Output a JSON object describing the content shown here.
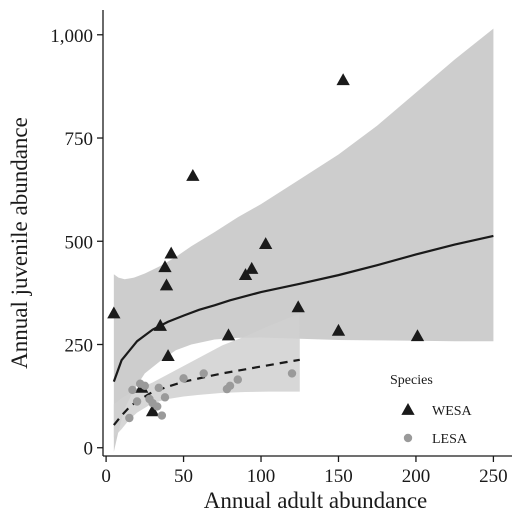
{
  "chart_data": {
    "type": "scatter",
    "xlabel": "Annual adult abundance",
    "ylabel": "Annual juvenile abundance",
    "xlim": [
      -2,
      262
    ],
    "ylim": [
      -20,
      1060
    ],
    "x_ticks": [
      0,
      50,
      100,
      150,
      200,
      250
    ],
    "y_ticks": [
      0,
      250,
      500,
      750,
      1000
    ],
    "x_tick_labels": [
      "0",
      "50",
      "100",
      "150",
      "200",
      "250"
    ],
    "y_tick_labels": [
      "0",
      "250",
      "500",
      "750",
      "1,000"
    ],
    "legend": {
      "title": "Species",
      "position": "bottom-right",
      "entries": [
        {
          "label": "WESA",
          "marker": "triangle",
          "color": "#1a1a1a"
        },
        {
          "label": "LESA",
          "marker": "circle",
          "color": "#9a9a9a"
        }
      ]
    },
    "series": [
      {
        "name": "WESA",
        "marker": "triangle",
        "color": "#1a1a1a",
        "points": [
          [
            5,
            325
          ],
          [
            23,
            145
          ],
          [
            30,
            88
          ],
          [
            35,
            295
          ],
          [
            38,
            437
          ],
          [
            39,
            393
          ],
          [
            40,
            222
          ],
          [
            42,
            470
          ],
          [
            56,
            658
          ],
          [
            79,
            272
          ],
          [
            90,
            418
          ],
          [
            94,
            433
          ],
          [
            103,
            493
          ],
          [
            124,
            340
          ],
          [
            150,
            283
          ],
          [
            153,
            890
          ],
          [
            201,
            270
          ]
        ],
        "fit": {
          "style": "solid",
          "line": [
            [
              5,
              160
            ],
            [
              10,
              212
            ],
            [
              20,
              258
            ],
            [
              30,
              286
            ],
            [
              40,
              305
            ],
            [
              50,
              320
            ],
            [
              60,
              334
            ],
            [
              70,
              345
            ],
            [
              80,
              357
            ],
            [
              100,
              377
            ],
            [
              125,
              397
            ],
            [
              150,
              418
            ],
            [
              175,
              442
            ],
            [
              200,
              468
            ],
            [
              225,
              492
            ],
            [
              250,
              513
            ]
          ],
          "ribbon_upper": [
            [
              5,
              420
            ],
            [
              8,
              412
            ],
            [
              12,
              408
            ],
            [
              18,
              412
            ],
            [
              25,
              422
            ],
            [
              35,
              440
            ],
            [
              45,
              462
            ],
            [
              55,
              488
            ],
            [
              70,
              522
            ],
            [
              85,
              558
            ],
            [
              100,
              590
            ],
            [
              125,
              650
            ],
            [
              150,
              710
            ],
            [
              175,
              780
            ],
            [
              200,
              860
            ],
            [
              225,
              940
            ],
            [
              250,
              1015
            ]
          ],
          "ribbon_lower": [
            [
              5,
              -10
            ],
            [
              8,
              40
            ],
            [
              12,
              95
            ],
            [
              18,
              140
            ],
            [
              25,
              180
            ],
            [
              35,
              210
            ],
            [
              45,
              236
            ],
            [
              55,
              250
            ],
            [
              70,
              262
            ],
            [
              85,
              266
            ],
            [
              100,
              267
            ],
            [
              125,
              264
            ],
            [
              150,
              261
            ],
            [
              175,
              260
            ],
            [
              200,
              259
            ],
            [
              225,
              258
            ],
            [
              250,
              258
            ]
          ],
          "fill": "#c4c4c4"
        }
      },
      {
        "name": "LESA",
        "marker": "circle",
        "color": "#9a9a9a",
        "points": [
          [
            15,
            72
          ],
          [
            17,
            140
          ],
          [
            20,
            112
          ],
          [
            22,
            155
          ],
          [
            25,
            150
          ],
          [
            28,
            118
          ],
          [
            30,
            108
          ],
          [
            33,
            100
          ],
          [
            34,
            145
          ],
          [
            36,
            78
          ],
          [
            38,
            122
          ],
          [
            50,
            168
          ],
          [
            63,
            180
          ],
          [
            78,
            142
          ],
          [
            80,
            150
          ],
          [
            85,
            165
          ],
          [
            120,
            180
          ]
        ],
        "fit": {
          "style": "dashed",
          "line": [
            [
              5,
              55
            ],
            [
              10,
              78
            ],
            [
              15,
              98
            ],
            [
              20,
              113
            ],
            [
              30,
              135
            ],
            [
              40,
              148
            ],
            [
              50,
              160
            ],
            [
              60,
              168
            ],
            [
              75,
              180
            ],
            [
              90,
              190
            ],
            [
              105,
              200
            ],
            [
              125,
              213
            ]
          ],
          "ribbon_upper": [
            [
              5,
              105
            ],
            [
              10,
              120
            ],
            [
              15,
              132
            ],
            [
              20,
              142
            ],
            [
              30,
              158
            ],
            [
              40,
              178
            ],
            [
              50,
              198
            ],
            [
              60,
              218
            ],
            [
              75,
              248
            ],
            [
              90,
              270
            ],
            [
              105,
              295
            ],
            [
              125,
              325
            ]
          ],
          "ribbon_lower": [
            [
              5,
              25
            ],
            [
              10,
              45
            ],
            [
              15,
              68
            ],
            [
              20,
              85
            ],
            [
              30,
              108
            ],
            [
              40,
              118
            ],
            [
              50,
              124
            ],
            [
              60,
              128
            ],
            [
              75,
              133
            ],
            [
              90,
              135
            ],
            [
              105,
              136
            ],
            [
              125,
              136
            ]
          ],
          "fill": "#d0d0d0"
        }
      }
    ]
  }
}
